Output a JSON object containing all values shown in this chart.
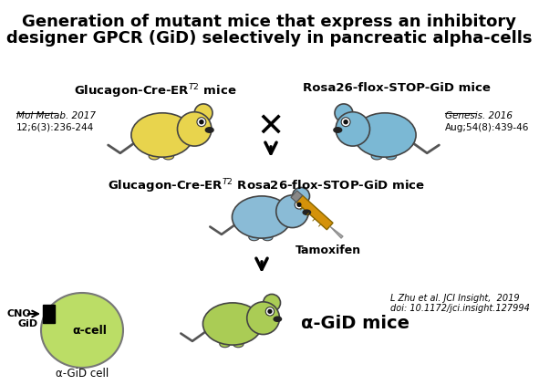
{
  "title_line1": "Generation of mutant mice that express an inhibitory",
  "title_line2": "designer GPCR (GiD) selectively in pancreatic alpha-cells",
  "label_left_mouse": "Glucagon-Cre-ER$^{T2}$ mice",
  "label_right_mouse": "Rosa26-flox-STOP-GiD mice",
  "ref_left_line1_italic": "Mol Metab.",
  "ref_left_line1_rest": " 2017",
  "ref_left_line2": "12;6(3):236-244",
  "ref_right_line1_italic": "Genesis.",
  "ref_right_line1_rest": " 2016",
  "ref_right_line2": "Aug;54(8):439-46",
  "label_cross_mouse": "Glucagon-Cre-ER$^{T2}$ Rosa26-flox-STOP-GiD mice",
  "label_tamoxifen": "Tamoxifen",
  "label_alpha_gid": "α-GiD mice",
  "label_alpha_cell": "α-cell",
  "label_alpha_gid_cell": "α-GiD cell",
  "label_cno": "CNO",
  "label_gid": "GiD",
  "label_ref_bottom1": "L Zhu et al. JCI Insight,  2019",
  "label_ref_bottom2": "doi: 10.1172/jci.insight.127994",
  "color_yellow": "#E8D44D",
  "color_blue": "#7BB8D4",
  "color_blue2": "#8ABBD6",
  "color_green": "#AACC55",
  "color_green_cell": "#BBDD66",
  "color_orange": "#D4920A",
  "color_dark": "#333333",
  "bg": "#FFFFFF"
}
